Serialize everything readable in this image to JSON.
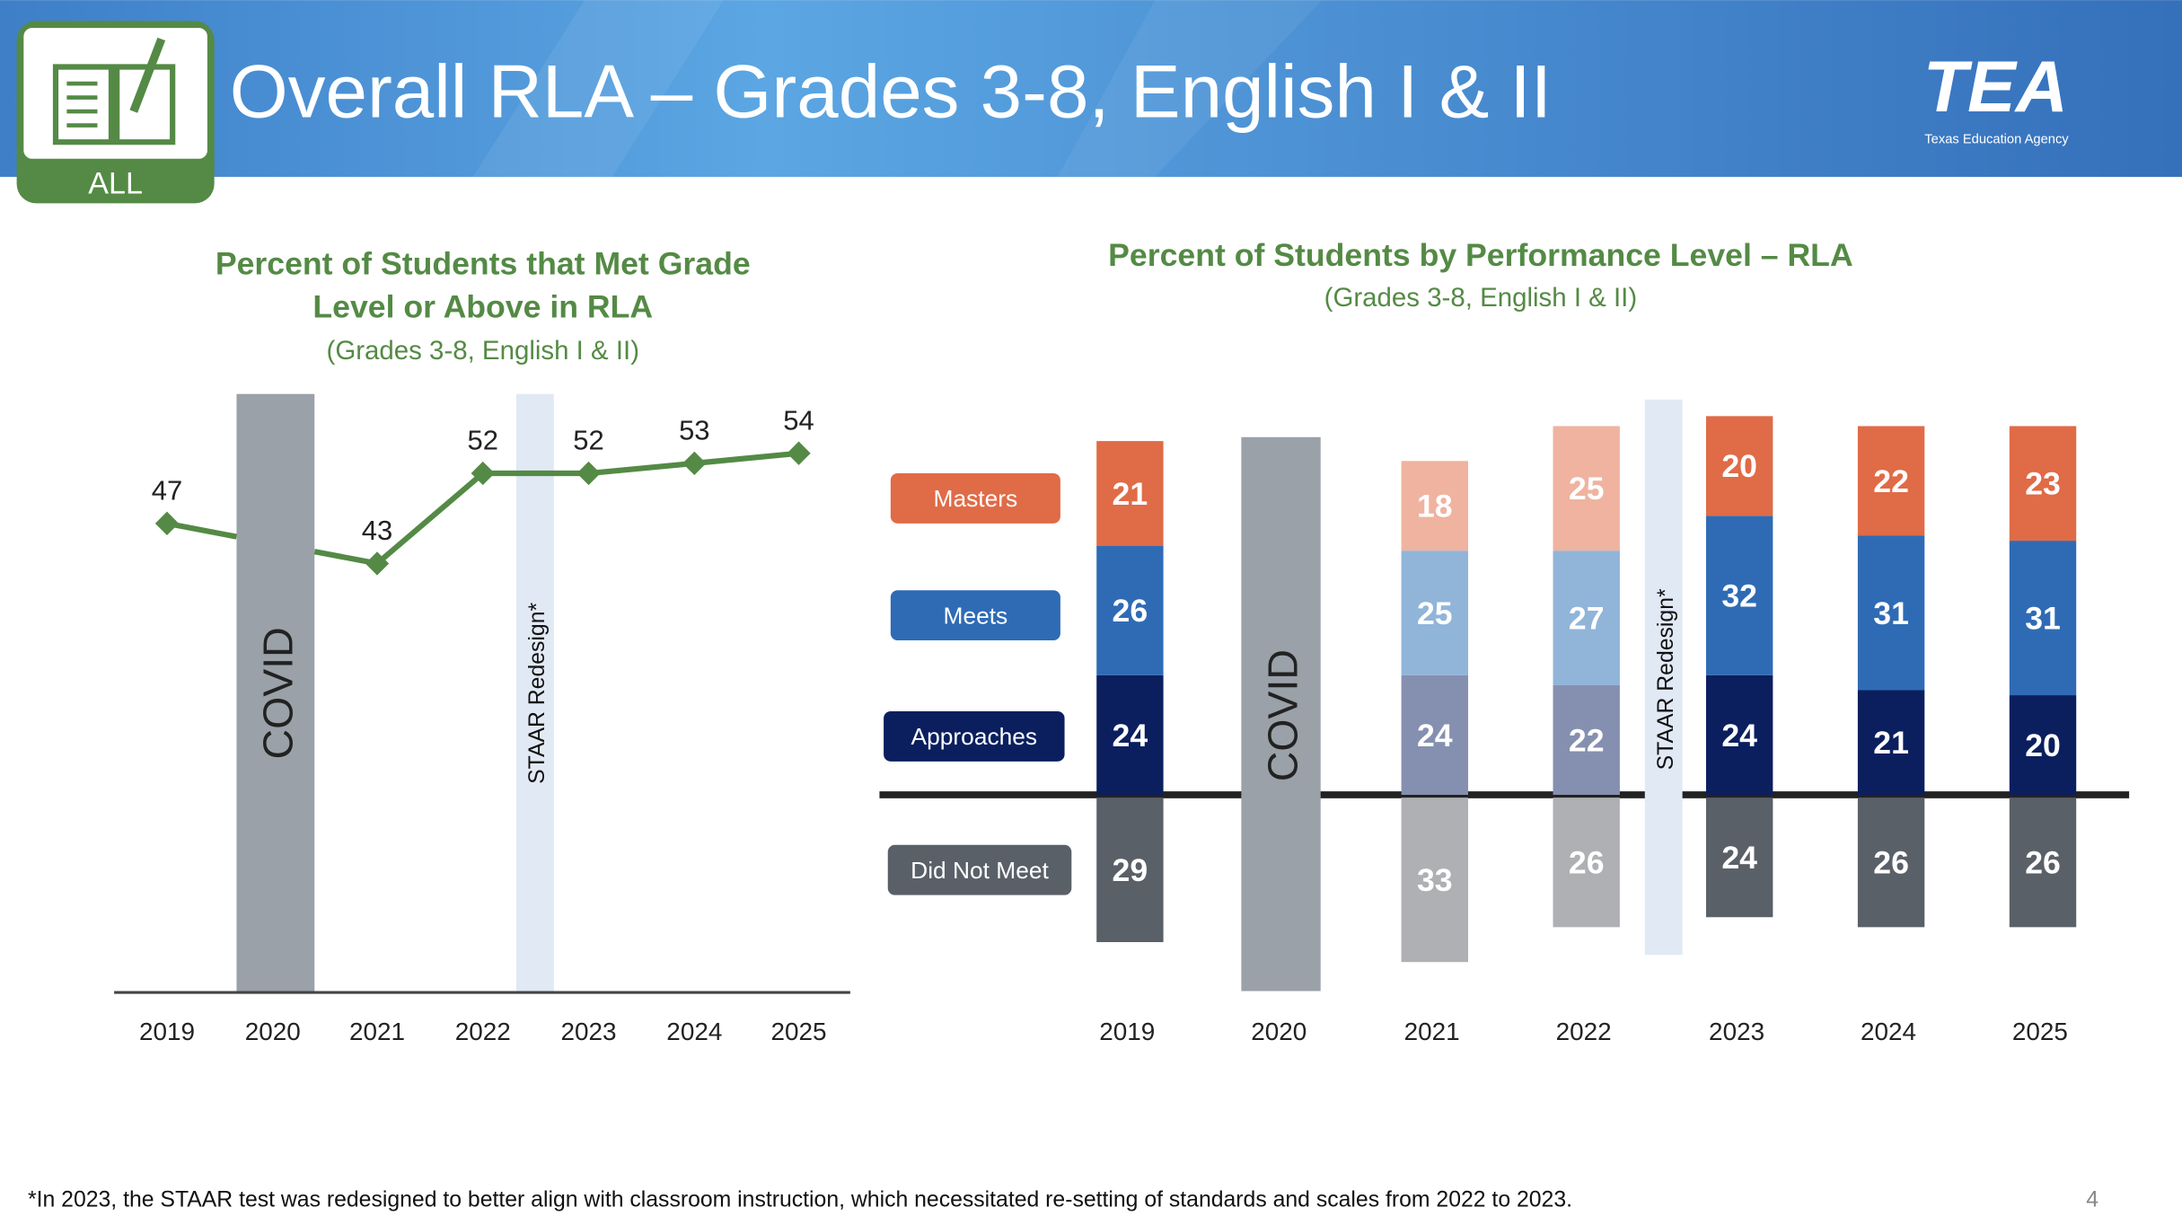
{
  "header": {
    "title": "Overall RLA – Grades 3-8, English I & II",
    "badge_label": "ALL",
    "logo_text": "TEA",
    "logo_subtext": "Texas Education Agency"
  },
  "footnote": "*In 2023, the STAAR test was redesigned to better align with classroom instruction, which necessitated re-setting of standards and scales from 2022 to 2023.",
  "page_number": "4",
  "colors": {
    "header": "#4A8FD6",
    "green": "#548A45",
    "masters": "#E06B47",
    "meets": "#2F6BB5",
    "approaches": "#0B1F5F",
    "did_not_meet": "#5A6068",
    "masters_light": "#EFB3A0",
    "meets_light": "#91B4D9",
    "approaches_light": "#8590B0",
    "did_not_meet_light": "#AEB0B3",
    "covid": "#9AA1A8",
    "staar": "#E1E9F5"
  },
  "chart_data": [
    {
      "type": "line",
      "title": "Percent of Students that Met Grade Level or Above in RLA",
      "title_line1": "Percent of Students that Met Grade",
      "title_line2": "Level or Above in RLA",
      "subtitle": "(Grades 3-8, English I & II)",
      "x": [
        "2019",
        "2020",
        "2021",
        "2022",
        "2023",
        "2024",
        "2025"
      ],
      "values": [
        47,
        null,
        43,
        52,
        52,
        53,
        54
      ],
      "labels": [
        "47",
        "",
        "43",
        "52",
        "52",
        "53",
        "54"
      ],
      "annotations": {
        "covid": "COVID",
        "staar": "STAAR Redesign*"
      },
      "ylim": [
        0,
        100
      ]
    },
    {
      "type": "bar",
      "stacked": true,
      "title": "Percent of Students by Performance Level – RLA",
      "subtitle": "(Grades 3-8, English I & II)",
      "categories": [
        "2019",
        "2020",
        "2021",
        "2022",
        "2023",
        "2024",
        "2025"
      ],
      "legend": [
        "Masters",
        "Meets",
        "Approaches",
        "Did Not Meet"
      ],
      "series": [
        {
          "name": "Masters",
          "values": [
            21,
            null,
            18,
            25,
            20,
            22,
            23
          ]
        },
        {
          "name": "Meets",
          "values": [
            26,
            null,
            25,
            27,
            32,
            31,
            31
          ]
        },
        {
          "name": "Approaches",
          "values": [
            24,
            null,
            24,
            22,
            24,
            21,
            20
          ]
        },
        {
          "name": "Did Not Meet",
          "values": [
            29,
            null,
            33,
            26,
            24,
            26,
            26
          ]
        }
      ],
      "annotations": {
        "covid": "COVID",
        "staar": "STAAR Redesign*"
      }
    }
  ]
}
